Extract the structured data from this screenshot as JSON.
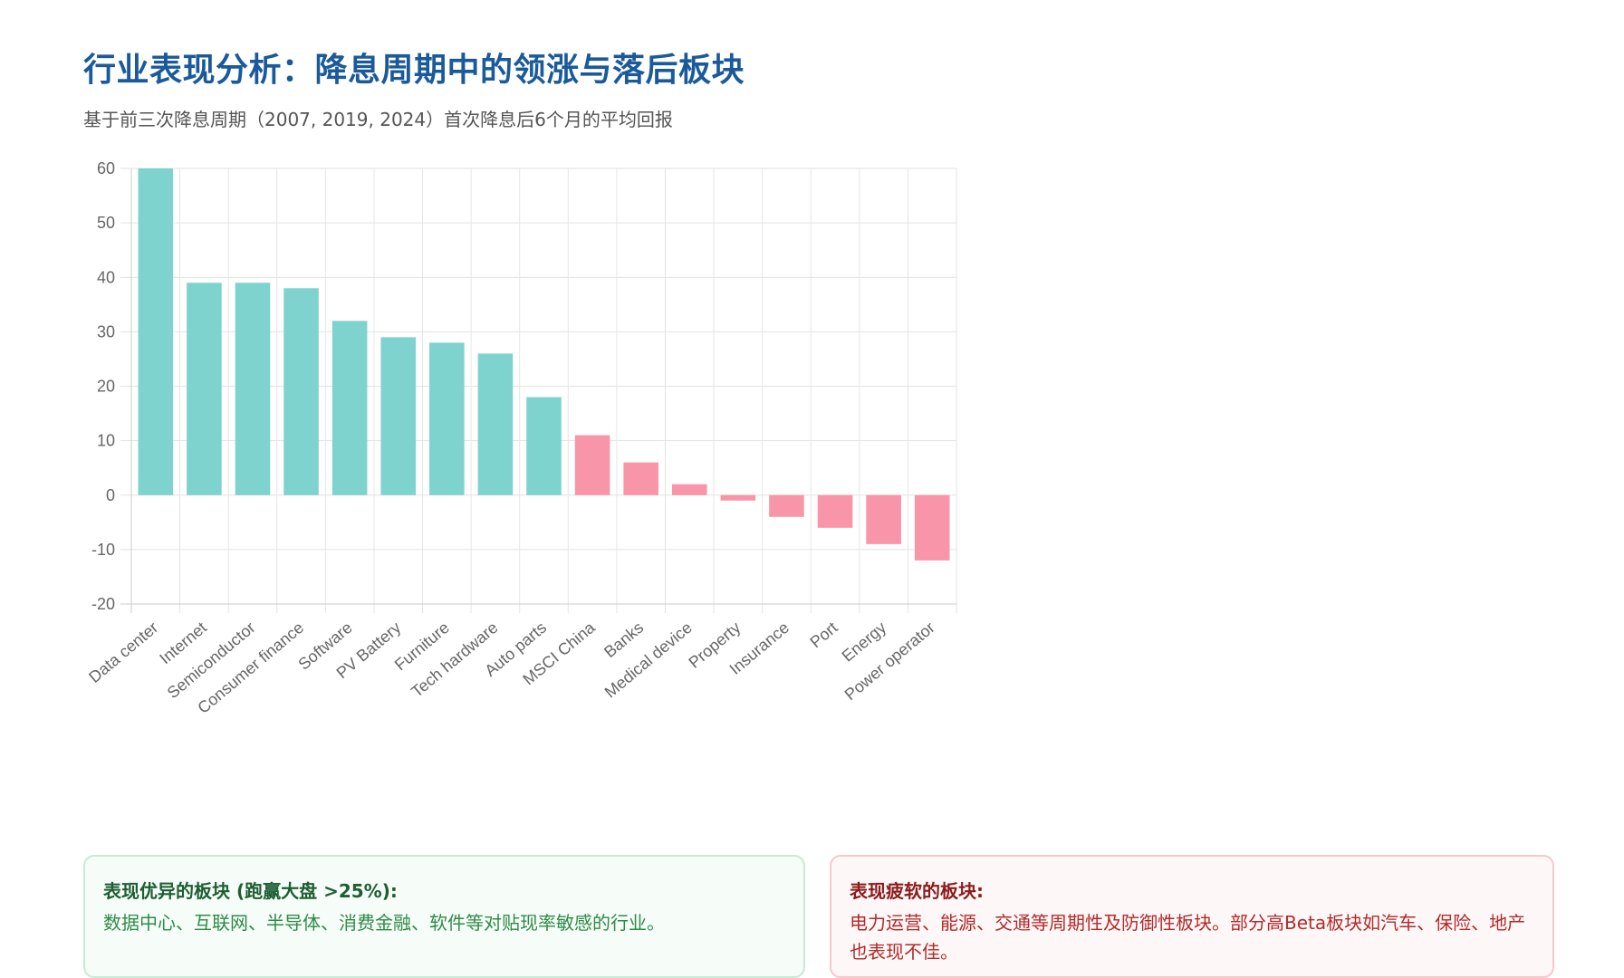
{
  "header": {
    "title": "行业表现分析：降息周期中的领涨与落后板块",
    "subtitle": "基于前三次降息周期（2007, 2019, 2024）首次降息后6个月的平均回报"
  },
  "chart_data": {
    "type": "bar",
    "categories": [
      "Data center",
      "Internet",
      "Semiconductor",
      "Consumer finance",
      "Software",
      "PV Battery",
      "Furniture",
      "Tech hardware",
      "Auto parts",
      "MSCI China",
      "Banks",
      "Medical device",
      "Property",
      "Insurance",
      "Port",
      "Energy",
      "Power operator"
    ],
    "values": [
      60,
      39,
      39,
      38,
      32,
      29,
      28,
      26,
      18,
      11,
      6,
      2,
      -1,
      -4,
      -6,
      -9,
      -12
    ],
    "ylim": [
      -20,
      60
    ],
    "yticks": [
      60,
      50,
      40,
      30,
      20,
      10,
      0,
      -10,
      -20
    ],
    "grid": true,
    "colors": {
      "outperform": "#7fd3cf",
      "underperform": "#f895a9"
    }
  },
  "cards": {
    "outperform": {
      "title": "表现优异的板块 (跑赢大盘 >25%):",
      "text": "数据中心、互联网、半导体、消费金融、软件等对贴现率敏感的行业。"
    },
    "underperform": {
      "title": "表现疲软的板块:",
      "text": "电力运营、能源、交通等周期性及防御性板块。部分高Beta板块如汽车、保险、地产也表现不佳。"
    }
  }
}
